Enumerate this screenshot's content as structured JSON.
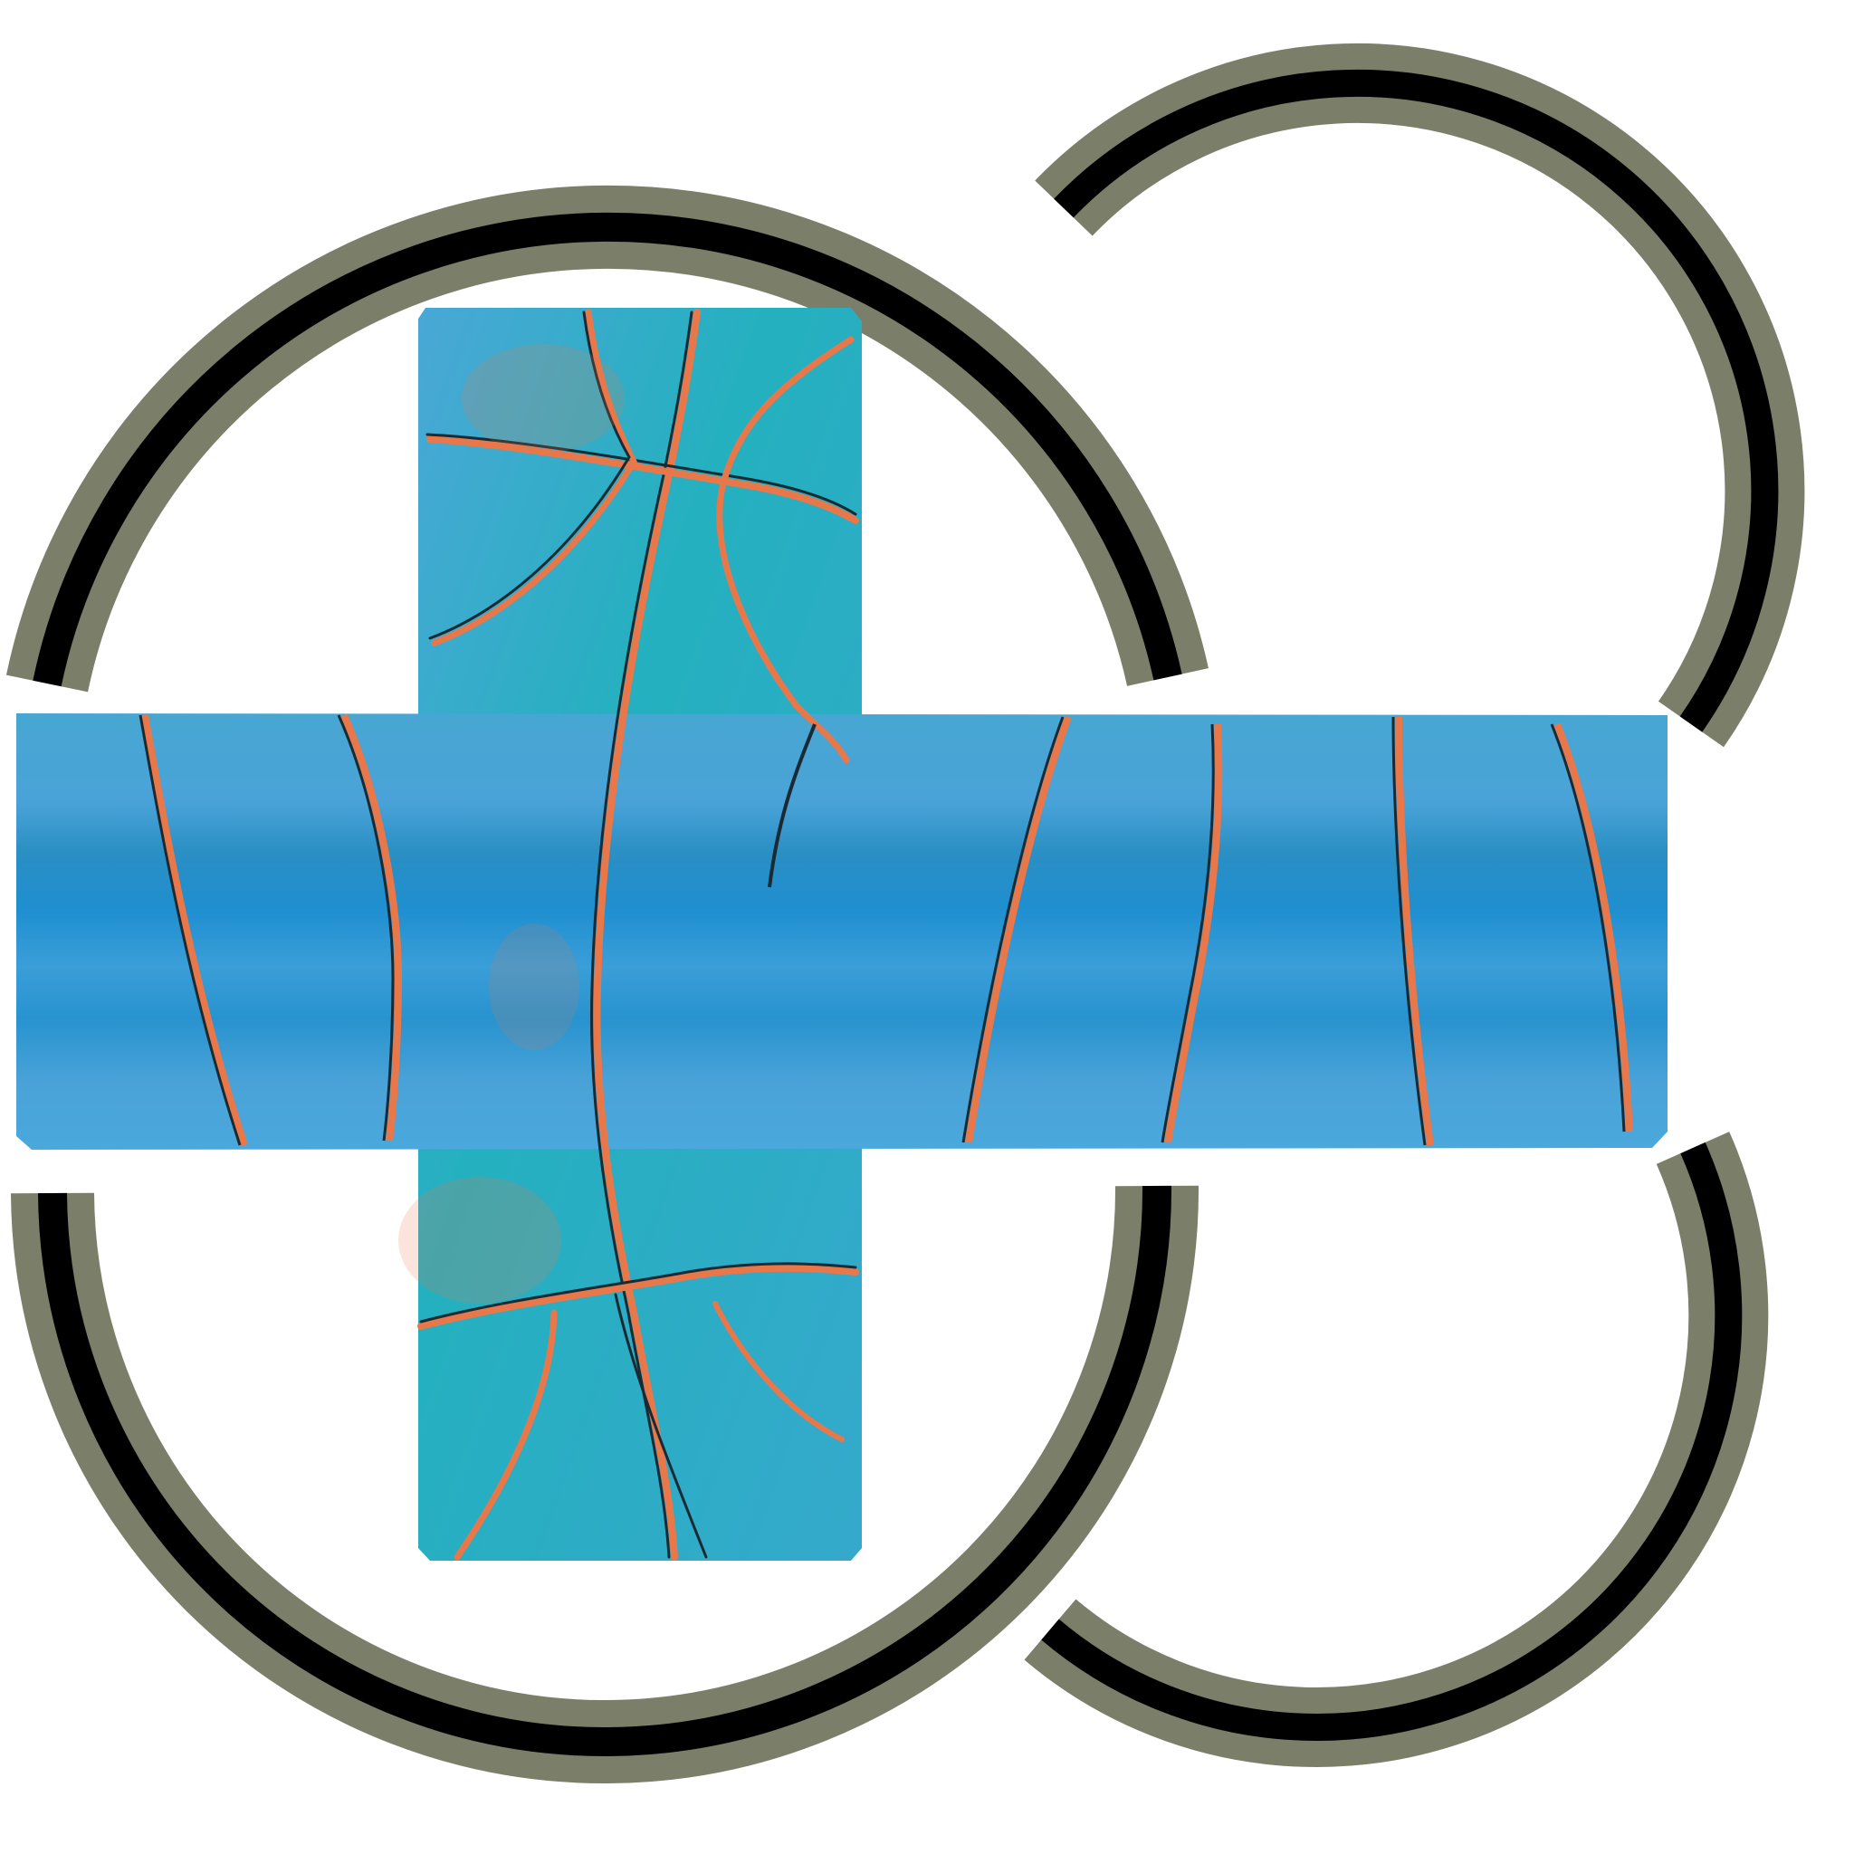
{
  "colors": {
    "background": "#ffffff",
    "ring_outer": "#7b7f6a",
    "ring_inner": "#000000",
    "ball_blue": "#4aa3d8",
    "ball_deep_blue": "#1f8fd0",
    "ball_teal": "#24b0bf",
    "seam_orange": "#e8784a",
    "seam_dark": "#1a2a33"
  },
  "elements": {
    "texture_atlas": "basketball-texture-atlas",
    "ball_cross": "basketball-cross-unwrap",
    "rings": [
      "rim-ring-large-top",
      "rim-ring-large-bottom",
      "rim-ring-small-top",
      "rim-ring-small-bottom"
    ]
  }
}
